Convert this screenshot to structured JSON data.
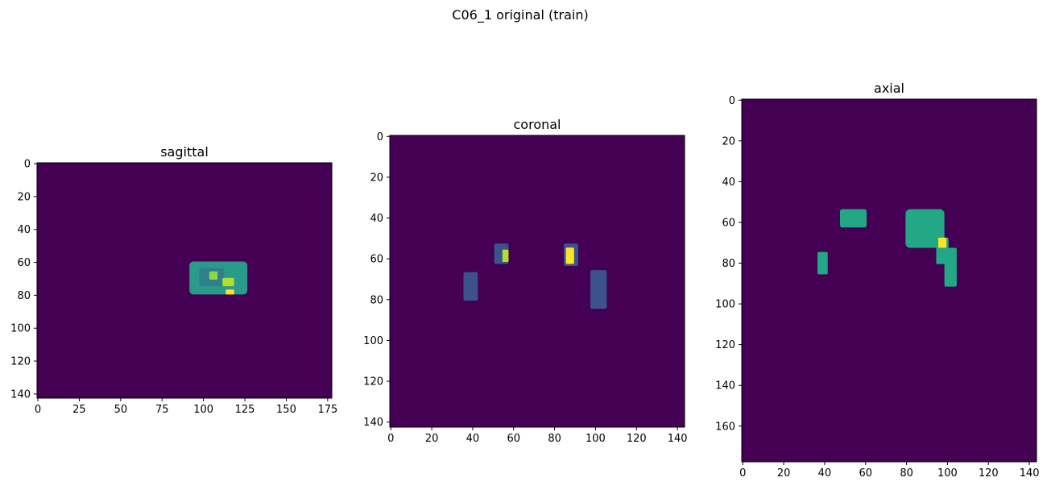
{
  "figure": {
    "title": "C06_1 original (train)"
  },
  "chart_data": [
    {
      "type": "heatmap",
      "title": "sagittal",
      "image_shape": [
        143,
        178
      ],
      "xlim": [
        -0.5,
        177.5
      ],
      "ylim": [
        142.5,
        -0.5
      ],
      "xticks": [
        0,
        25,
        50,
        75,
        100,
        125,
        150,
        175
      ],
      "yticks": [
        0,
        20,
        40,
        60,
        80,
        100,
        120,
        140
      ],
      "xlabel": "",
      "ylabel": "",
      "colormap": "viridis",
      "background_color": "#440154",
      "blobs": [
        {
          "row": [
            60,
            79
          ],
          "col": [
            92,
            126
          ],
          "color": "#2a9b8a"
        },
        {
          "row": [
            64,
            74
          ],
          "col": [
            98,
            112
          ],
          "color": "#2f7f8e"
        },
        {
          "row": [
            66,
            70
          ],
          "col": [
            104,
            108
          ],
          "color": "#8fd744"
        },
        {
          "row": [
            70,
            74
          ],
          "col": [
            112,
            118
          ],
          "color": "#b4dd2c"
        },
        {
          "row": [
            77,
            79
          ],
          "col": [
            114,
            118
          ],
          "color": "#fde725"
        }
      ]
    },
    {
      "type": "heatmap",
      "title": "coronal",
      "image_shape": [
        143,
        144
      ],
      "xlim": [
        -0.5,
        143.5
      ],
      "ylim": [
        142.5,
        -0.5
      ],
      "xticks": [
        0,
        20,
        40,
        60,
        80,
        100,
        120,
        140
      ],
      "yticks": [
        0,
        20,
        40,
        60,
        80,
        100,
        120,
        140
      ],
      "xlabel": "",
      "ylabel": "",
      "colormap": "viridis",
      "background_color": "#440154",
      "blobs": [
        {
          "row": [
            53,
            62
          ],
          "col": [
            51,
            57
          ],
          "color": "#3b528b"
        },
        {
          "row": [
            56,
            61
          ],
          "col": [
            55,
            57
          ],
          "color": "#b5de2b"
        },
        {
          "row": [
            53,
            63
          ],
          "col": [
            85,
            91
          ],
          "color": "#3b528b"
        },
        {
          "row": [
            55,
            62
          ],
          "col": [
            86,
            89
          ],
          "color": "#fde725"
        },
        {
          "row": [
            67,
            80
          ],
          "col": [
            36,
            42
          ],
          "color": "#3b528b"
        },
        {
          "row": [
            66,
            84
          ],
          "col": [
            98,
            105
          ],
          "color": "#3b528b"
        }
      ]
    },
    {
      "type": "heatmap",
      "title": "axial",
      "image_shape": [
        178,
        144
      ],
      "xlim": [
        -0.5,
        143.5
      ],
      "ylim": [
        177.5,
        -0.5
      ],
      "xticks": [
        0,
        20,
        40,
        60,
        80,
        100,
        120,
        140
      ],
      "yticks": [
        0,
        20,
        40,
        60,
        80,
        100,
        120,
        140,
        160
      ],
      "xlabel": "",
      "ylabel": "",
      "colormap": "viridis",
      "background_color": "#440154",
      "blobs": [
        {
          "row": [
            54,
            62
          ],
          "col": [
            48,
            60
          ],
          "color": "#22a884"
        },
        {
          "row": [
            75,
            85
          ],
          "col": [
            37,
            41
          ],
          "color": "#22a884"
        },
        {
          "row": [
            54,
            72
          ],
          "col": [
            80,
            98
          ],
          "color": "#22a884"
        },
        {
          "row": [
            68,
            80
          ],
          "col": [
            95,
            100
          ],
          "color": "#22a884"
        },
        {
          "row": [
            73,
            91
          ],
          "col": [
            99,
            104
          ],
          "color": "#22a884"
        },
        {
          "row": [
            68,
            72
          ],
          "col": [
            96,
            99
          ],
          "color": "#fde725"
        }
      ]
    }
  ]
}
